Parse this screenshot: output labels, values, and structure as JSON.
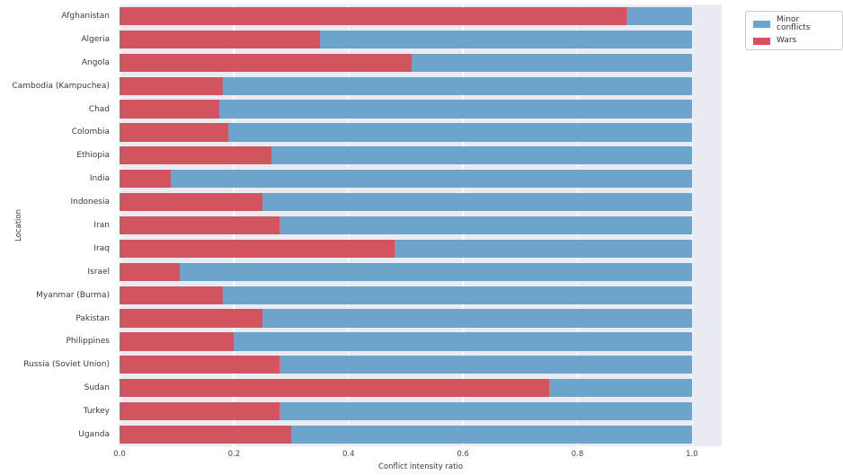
{
  "chart_data": {
    "type": "bar",
    "orientation": "horizontal",
    "stacked": true,
    "title": "",
    "xlabel": "Conflict intensity ratio",
    "ylabel": "Location",
    "xlim": [
      0,
      1.052
    ],
    "xtick_labels": [
      "0.0",
      "0.2",
      "0.4",
      "0.6",
      "0.8",
      "1.0"
    ],
    "xtick_values": [
      0,
      0.2,
      0.4,
      0.6,
      0.8,
      1.0
    ],
    "grid": true,
    "grid_color": "#ffffff",
    "plot_background": "#eaeaf2",
    "categories": [
      "Afghanistan",
      "Algeria",
      "Angola",
      "Cambodia (Kampuchea)",
      "Chad",
      "Colombia",
      "Ethiopia",
      "India",
      "Indonesia",
      "Iran",
      "Iraq",
      "Israel",
      "Myanmar (Burma)",
      "Pakistan",
      "Philippines",
      "Russia (Soviet Union)",
      "Sudan",
      "Turkey",
      "Uganda"
    ],
    "series": [
      {
        "name": "Wars",
        "color": "#d2545e",
        "values": [
          0.885,
          0.35,
          0.51,
          0.18,
          0.175,
          0.19,
          0.265,
          0.09,
          0.25,
          0.28,
          0.48,
          0.105,
          0.18,
          0.25,
          0.2,
          0.28,
          0.75,
          0.28,
          0.3
        ]
      },
      {
        "name": "Minor conflicts",
        "color": "#6da4cc",
        "values": [
          0.115,
          0.65,
          0.49,
          0.82,
          0.825,
          0.81,
          0.735,
          0.91,
          0.75,
          0.72,
          0.52,
          0.895,
          0.82,
          0.75,
          0.8,
          0.72,
          0.25,
          0.72,
          0.7
        ]
      }
    ],
    "legend": {
      "position": "outside-upper-right",
      "entries": [
        {
          "label": "Minor conflicts",
          "color": "#6da4cc"
        },
        {
          "label": "Wars",
          "color": "#d2545e"
        }
      ]
    }
  }
}
